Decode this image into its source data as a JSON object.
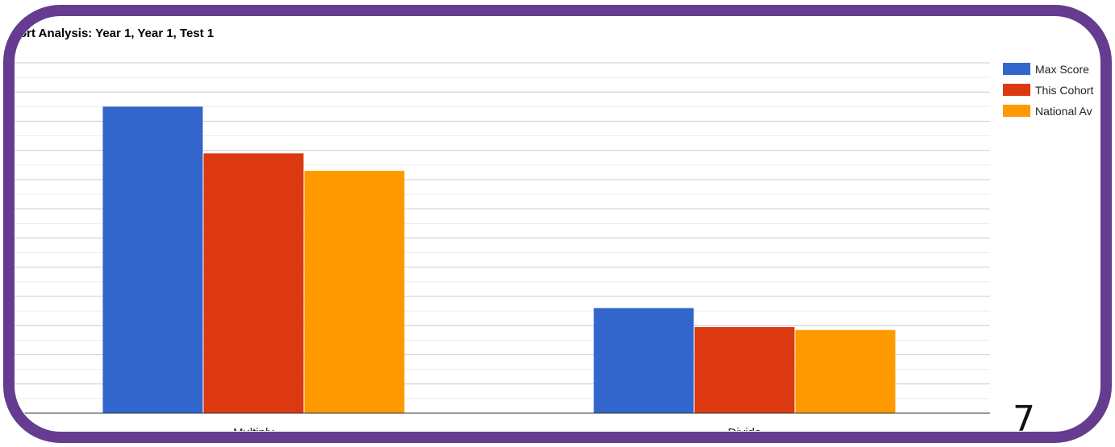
{
  "chart_data": {
    "type": "bar",
    "title": "ort Analysis: Year 1, Year 1, Test 1",
    "categories": [
      "Multiply",
      "Divide"
    ],
    "series": [
      {
        "name": "Max Score",
        "color": "#3366cc",
        "values": [
          10.5,
          3.6
        ]
      },
      {
        "name": "This Cohort",
        "color": "#dc3912",
        "values": [
          8.9,
          2.95
        ]
      },
      {
        "name": "National Av",
        "color": "#ff9900",
        "values": [
          8.3,
          2.85
        ]
      }
    ],
    "ylim": [
      0,
      12
    ],
    "grid": true,
    "legend_position": "right",
    "xlabel": "",
    "ylabel": ""
  },
  "slide_number": "7",
  "frame_color": "#653c8f"
}
